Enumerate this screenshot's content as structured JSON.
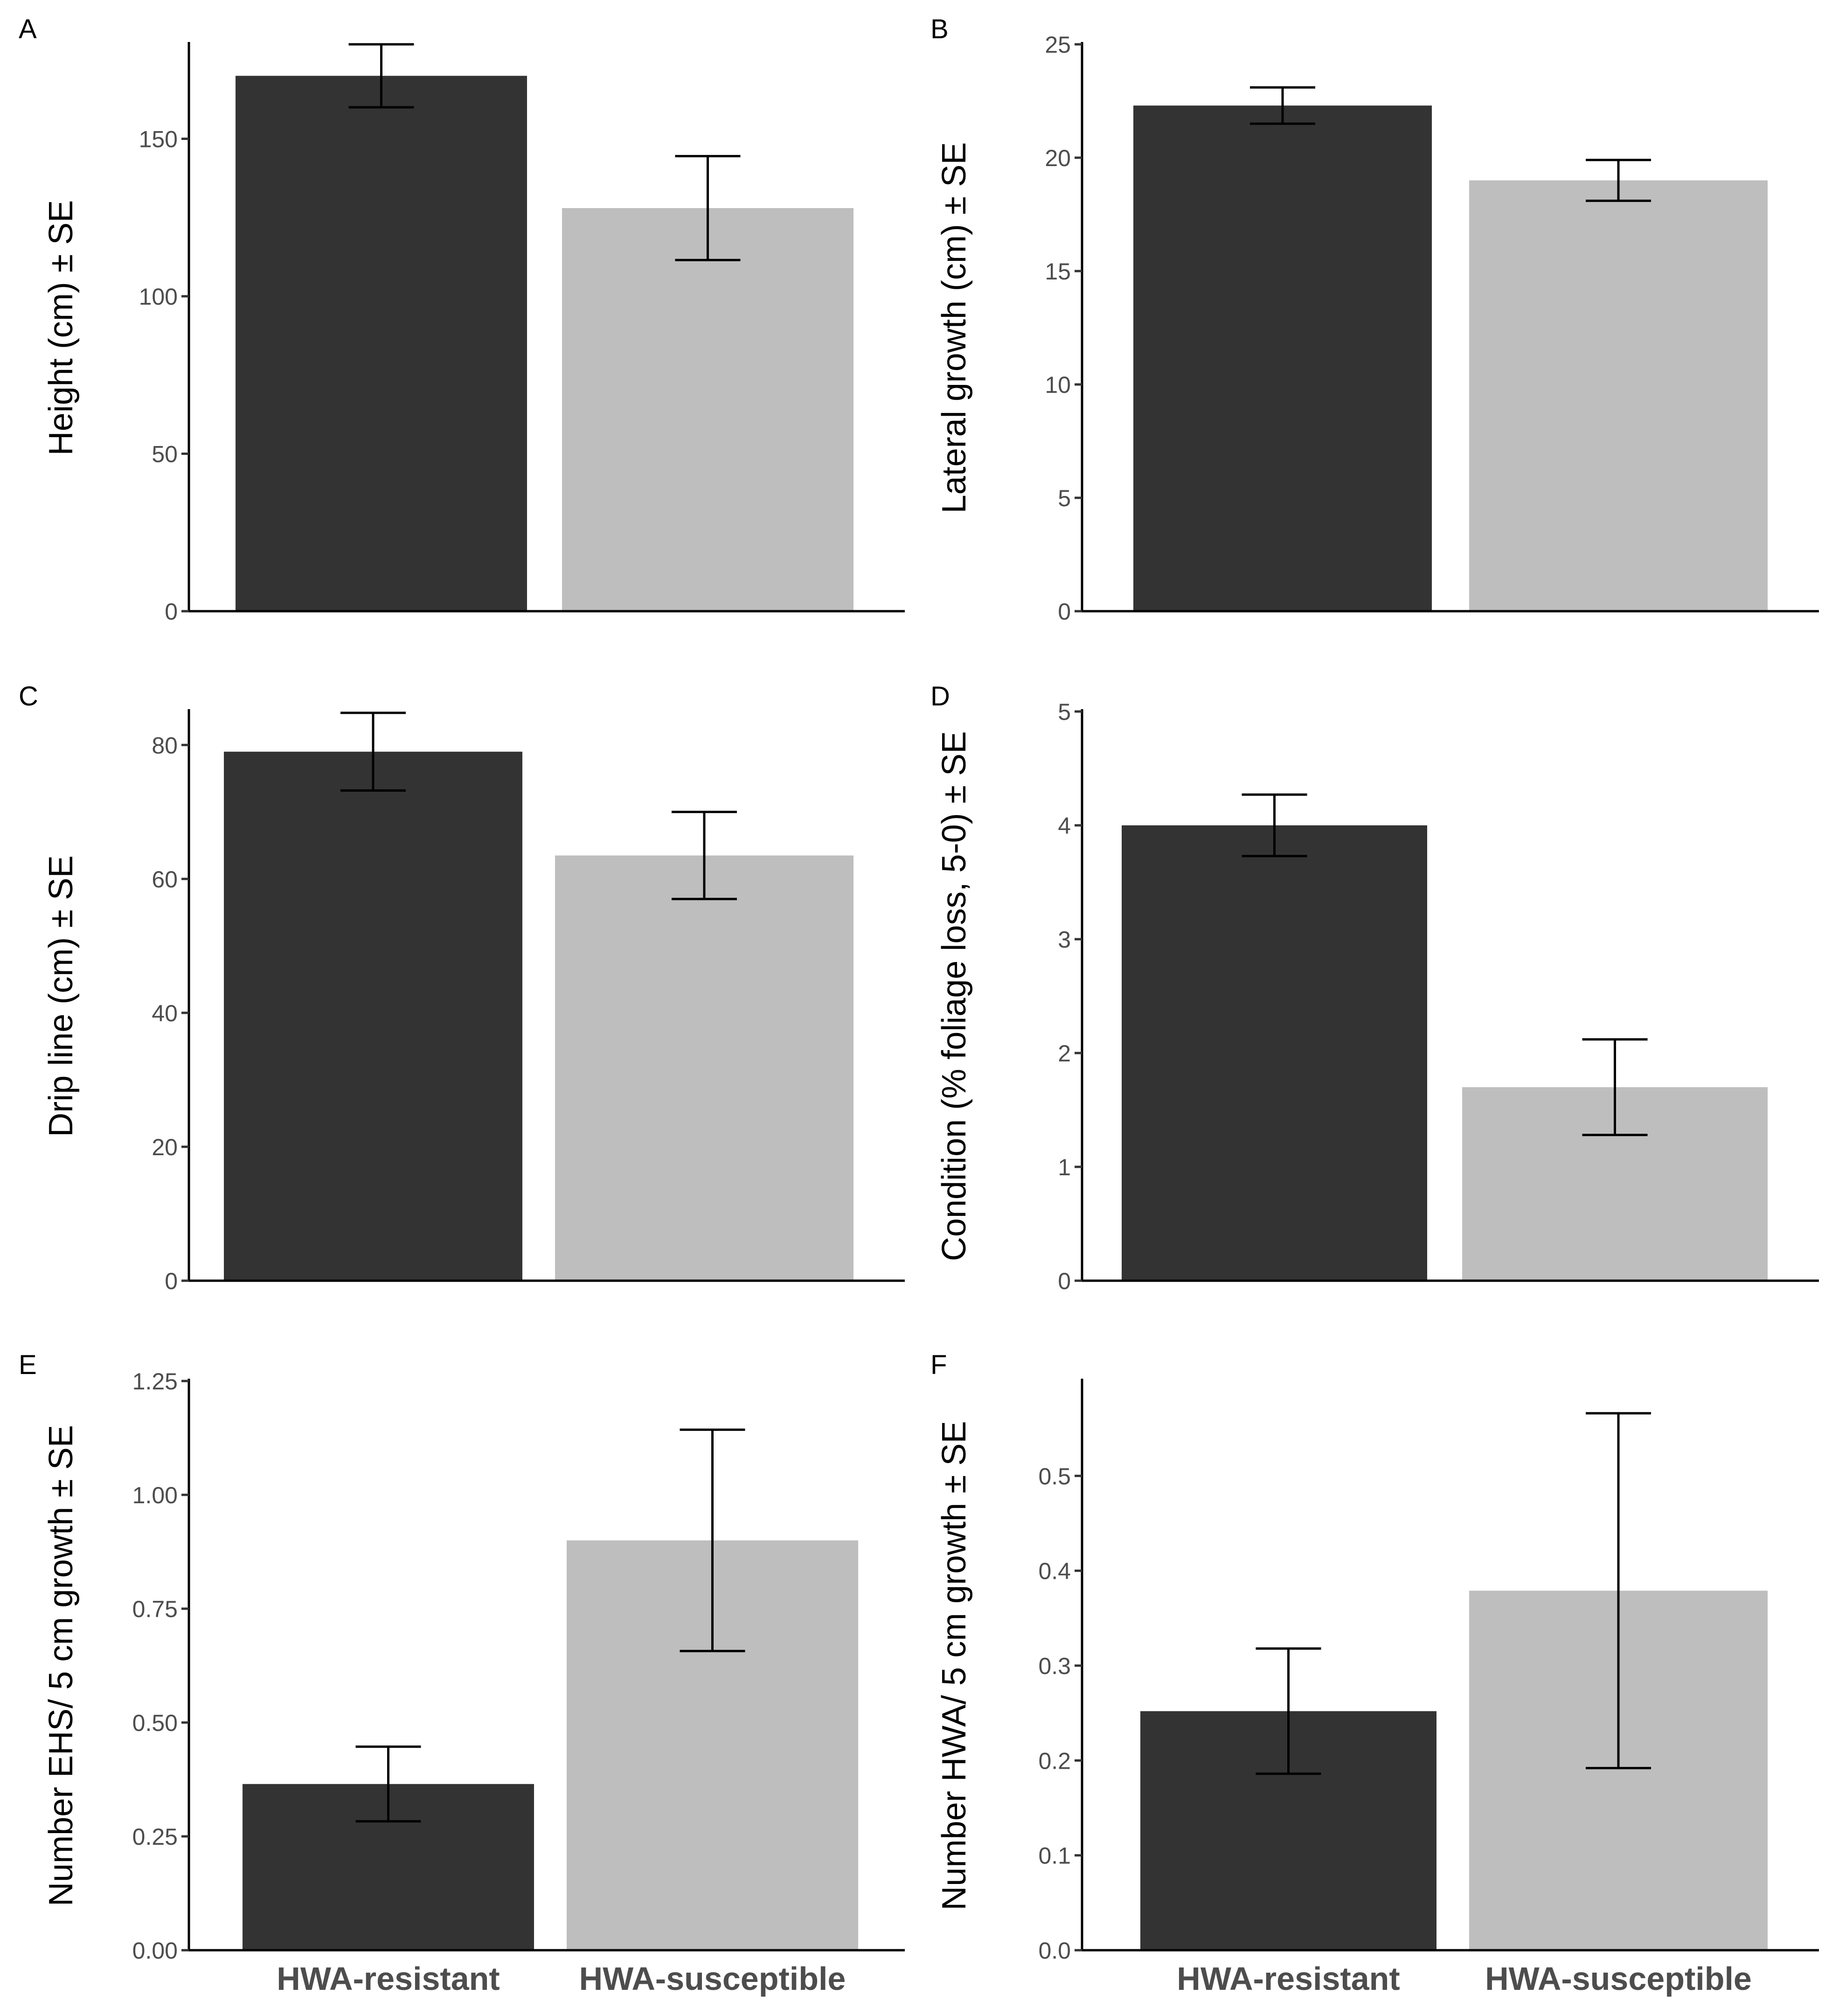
{
  "colors": {
    "resistant": "#333333",
    "susceptible": "#bebebe",
    "axis": "#000000",
    "tick_text": "#4d4d4d"
  },
  "chart_data": [
    {
      "id": "A",
      "type": "bar",
      "panel_label": "A",
      "title": "",
      "xlabel": "",
      "ylabel": "Height (cm) ± SE",
      "categories": [
        "HWA-resistant",
        "HWA-susceptible"
      ],
      "values": [
        170,
        128
      ],
      "errors": [
        10,
        16.5
      ],
      "ylim": [
        0,
        180
      ],
      "yticks": [
        0,
        50,
        100,
        150
      ],
      "ytick_labels": [
        "0",
        "50",
        "100",
        "150"
      ],
      "show_xlabels": false,
      "grid": false
    },
    {
      "id": "B",
      "type": "bar",
      "panel_label": "B",
      "title": "",
      "xlabel": "",
      "ylabel": "Lateral growth (cm) ± SE",
      "categories": [
        "HWA-resistant",
        "HWA-susceptible"
      ],
      "values": [
        22.3,
        19.0
      ],
      "errors": [
        0.8,
        0.9
      ],
      "ylim": [
        0,
        25
      ],
      "yticks": [
        0,
        5,
        10,
        15,
        20,
        25
      ],
      "ytick_labels": [
        "0",
        "5",
        "10",
        "15",
        "20",
        "25"
      ],
      "show_xlabels": false,
      "grid": false
    },
    {
      "id": "C",
      "type": "bar",
      "panel_label": "C",
      "title": "",
      "xlabel": "",
      "ylabel": "Drip line (cm) ± SE",
      "categories": [
        "HWA-resistant",
        "HWA-susceptible"
      ],
      "values": [
        79,
        63.5
      ],
      "errors": [
        5.8,
        6.5
      ],
      "ylim": [
        0,
        85
      ],
      "yticks": [
        0,
        20,
        40,
        60,
        80
      ],
      "ytick_labels": [
        "0",
        "20",
        "40",
        "60",
        "80"
      ],
      "show_xlabels": false,
      "grid": false
    },
    {
      "id": "D",
      "type": "bar",
      "panel_label": "D",
      "title": "",
      "xlabel": "",
      "ylabel": "Condition (% foliage loss, 5-0) ± SE",
      "categories": [
        "HWA-resistant",
        "HWA-susceptible"
      ],
      "values": [
        4.0,
        1.7
      ],
      "errors": [
        0.27,
        0.42
      ],
      "ylim": [
        0,
        5
      ],
      "yticks": [
        0,
        1,
        2,
        3,
        4,
        5
      ],
      "ytick_labels": [
        "0",
        "1",
        "2",
        "3",
        "4",
        "5"
      ],
      "show_xlabels": false,
      "grid": false
    },
    {
      "id": "E",
      "type": "bar",
      "panel_label": "E",
      "title": "",
      "xlabel": "",
      "ylabel": "Number EHS/ 5 cm growth ± SE",
      "categories": [
        "HWA-resistant",
        "HWA-susceptible"
      ],
      "values": [
        0.365,
        0.9
      ],
      "errors": [
        0.082,
        0.243
      ],
      "ylim": [
        0,
        1.25
      ],
      "yticks": [
        0,
        0.25,
        0.5,
        0.75,
        1.0,
        1.25
      ],
      "ytick_labels": [
        "0.00",
        "0.25",
        "0.50",
        "0.75",
        "1.00",
        "1.25"
      ],
      "show_xlabels": true,
      "grid": false
    },
    {
      "id": "F",
      "type": "bar",
      "panel_label": "F",
      "title": "",
      "xlabel": "",
      "ylabel": "Number HWA/ 5 cm growth ± SE",
      "categories": [
        "HWA-resistant",
        "HWA-susceptible"
      ],
      "values": [
        0.252,
        0.379
      ],
      "errors": [
        0.066,
        0.187
      ],
      "ylim": [
        0,
        0.6
      ],
      "yticks": [
        0,
        0.1,
        0.2,
        0.3,
        0.4,
        0.5
      ],
      "ytick_labels": [
        "0.0",
        "0.1",
        "0.2",
        "0.3",
        "0.4",
        "0.5"
      ],
      "show_xlabels": true,
      "grid": false
    }
  ]
}
